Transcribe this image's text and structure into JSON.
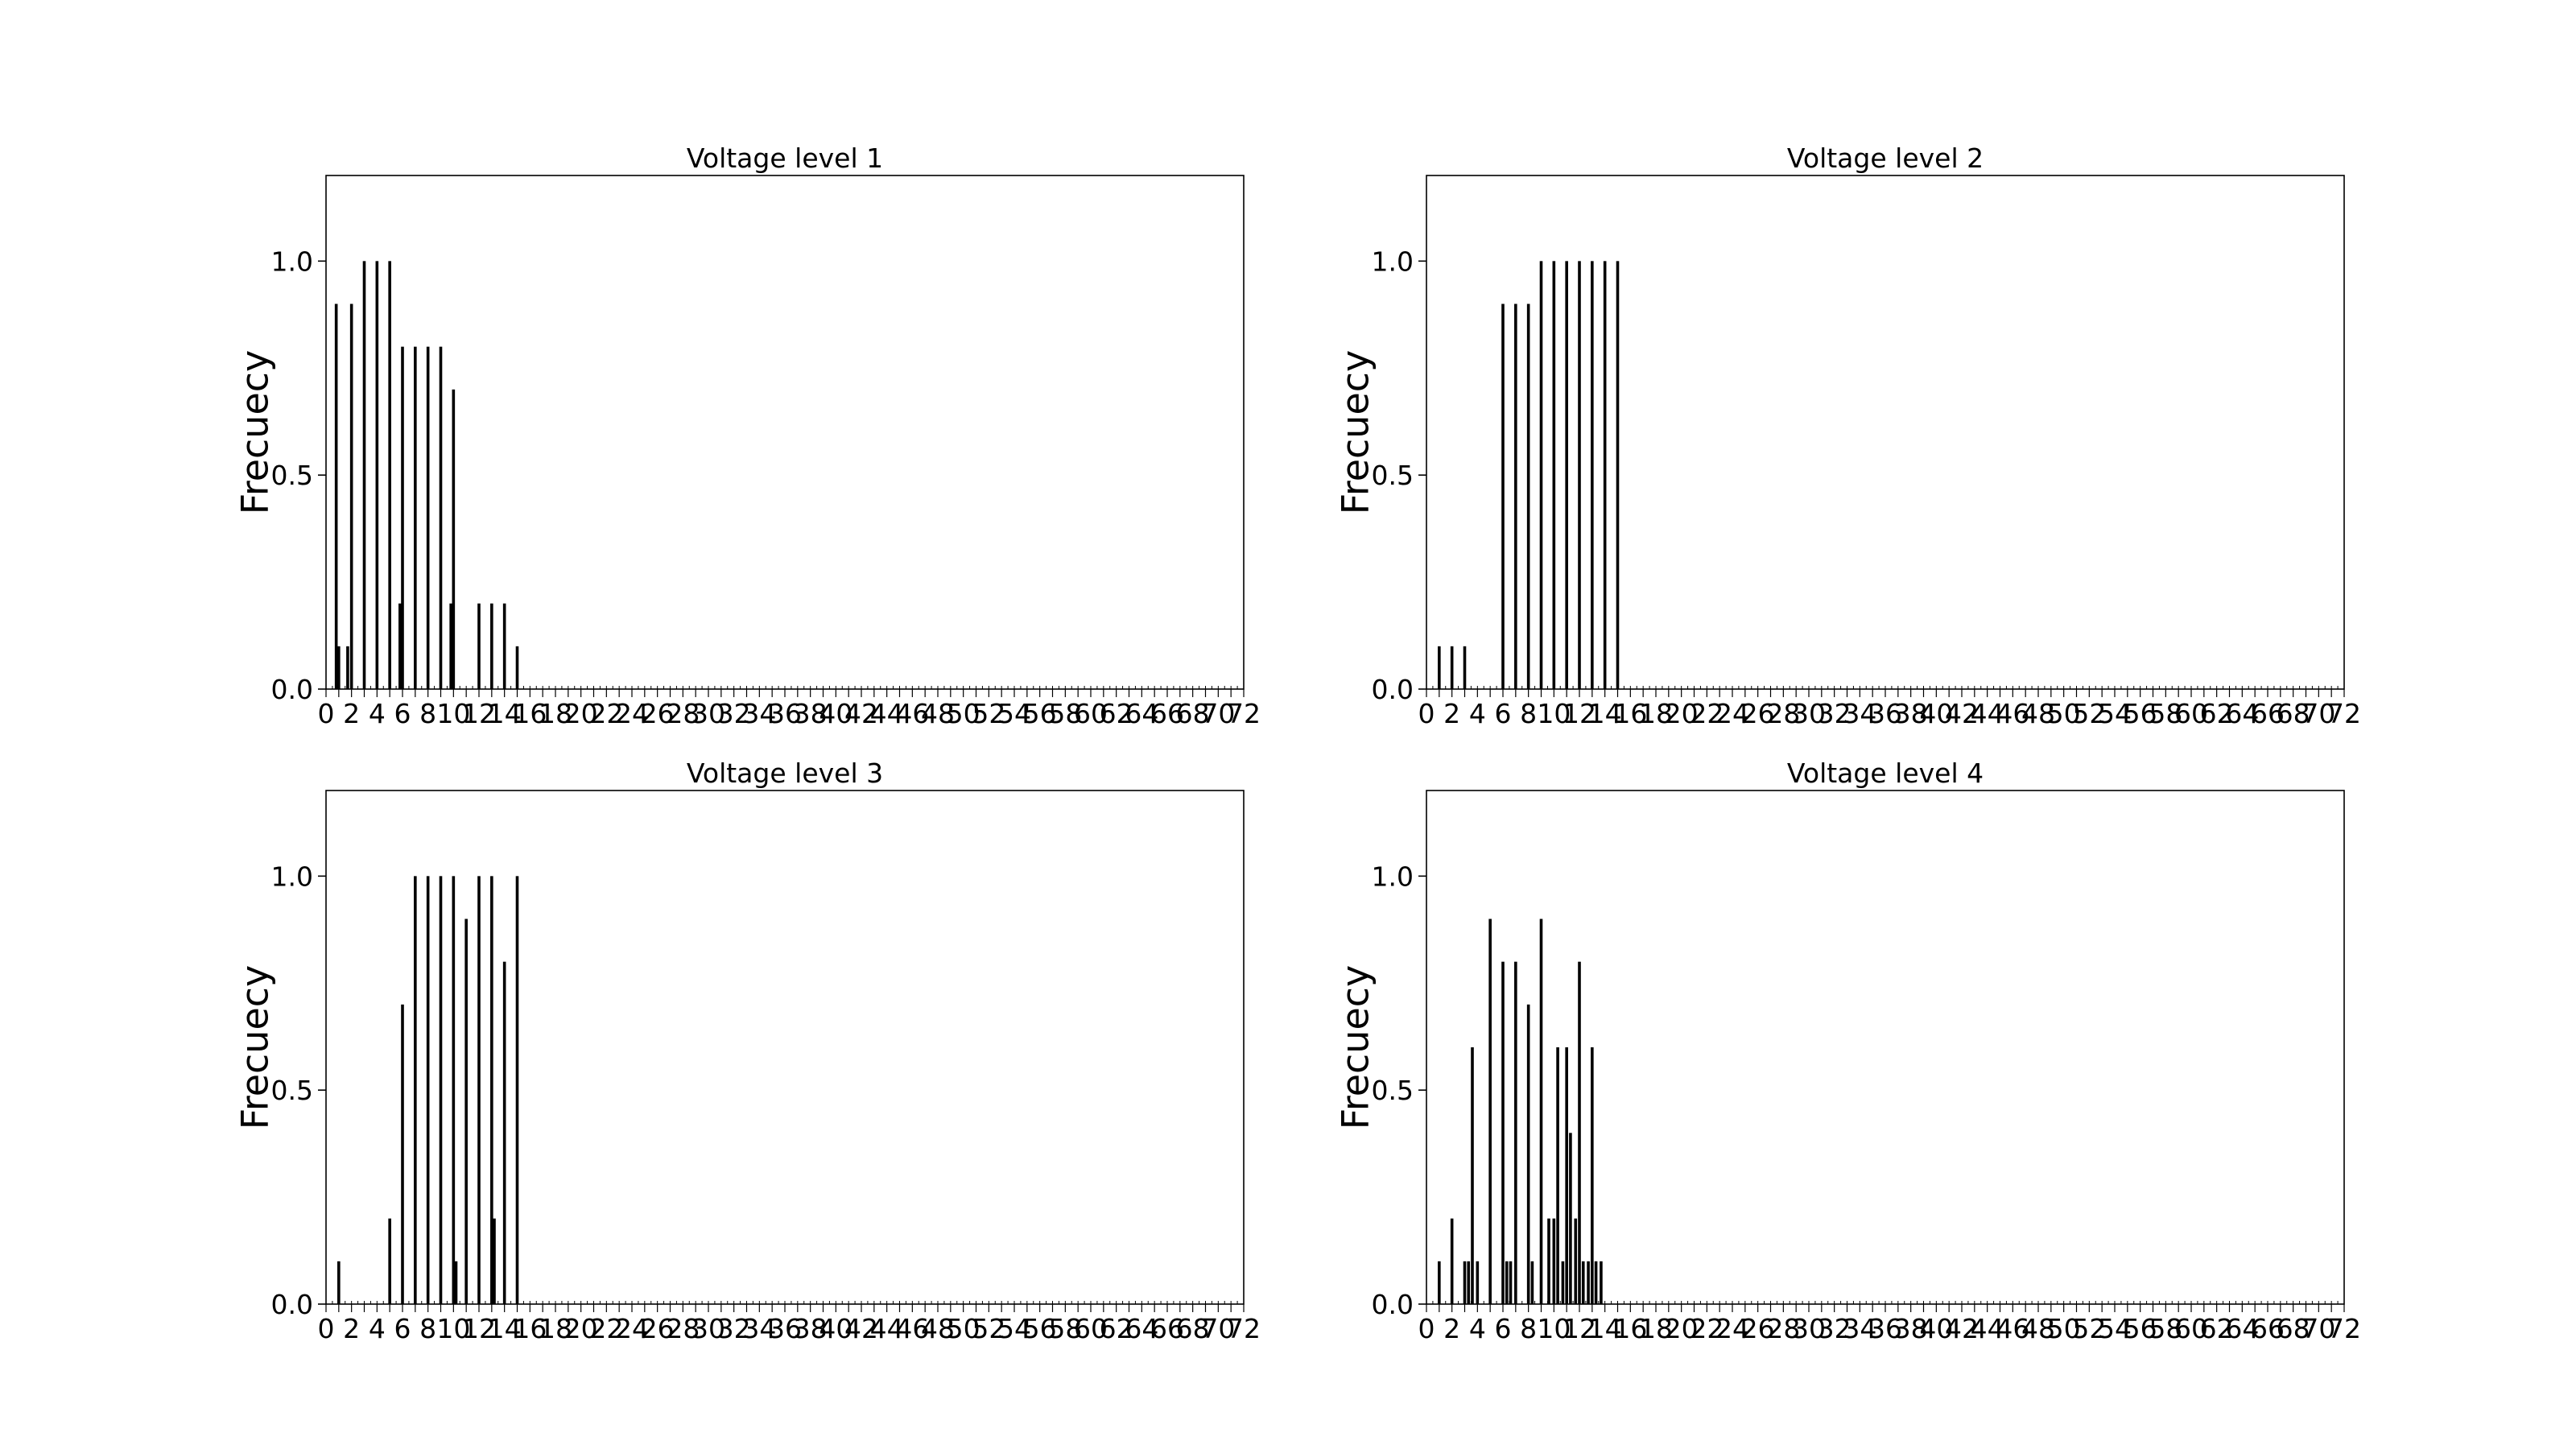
{
  "colors": {
    "background": "#ffffff",
    "axes": "#000000",
    "bars": "#000000"
  },
  "chart_data": [
    {
      "type": "bar",
      "title": "Voltage level 1",
      "xlabel": "",
      "ylabel": "Frecuecy",
      "xlim": [
        0,
        72
      ],
      "ylim": [
        0,
        1.2
      ],
      "yticks": [
        0.0,
        0.5,
        1.0
      ],
      "grid": false,
      "x": [
        0.8,
        1,
        1.7,
        2,
        3,
        4,
        5,
        5.8,
        6,
        7,
        8,
        9,
        9.8,
        10,
        12,
        13,
        14,
        15
      ],
      "values": [
        0.9,
        0.1,
        0.1,
        0.9,
        1.0,
        1.0,
        1.0,
        0.2,
        0.8,
        0.8,
        0.8,
        0.8,
        0.2,
        0.7,
        0.2,
        0.2,
        0.2,
        0.1
      ]
    },
    {
      "type": "bar",
      "title": "Voltage level 2",
      "xlabel": "",
      "ylabel": "Frecuecy",
      "xlim": [
        0,
        72
      ],
      "ylim": [
        0,
        1.2
      ],
      "yticks": [
        0.0,
        0.5,
        1.0
      ],
      "grid": false,
      "x": [
        1,
        2,
        3,
        6,
        7,
        8,
        9,
        10,
        11,
        12,
        13,
        14,
        15
      ],
      "values": [
        0.1,
        0.1,
        0.1,
        0.9,
        0.9,
        0.9,
        1.0,
        1.0,
        1.0,
        1.0,
        1.0,
        1.0,
        1.0
      ]
    },
    {
      "type": "bar",
      "title": "Voltage level 3",
      "xlabel": "",
      "ylabel": "Frecuecy",
      "xlim": [
        0,
        72
      ],
      "ylim": [
        0,
        1.2
      ],
      "yticks": [
        0.0,
        0.5,
        1.0
      ],
      "grid": false,
      "x": [
        1,
        5,
        6,
        7,
        8,
        9,
        10,
        10.2,
        11,
        12,
        13,
        13.2,
        14,
        15
      ],
      "values": [
        0.1,
        0.2,
        0.7,
        1.0,
        1.0,
        1.0,
        1.0,
        0.1,
        0.9,
        1.0,
        1.0,
        0.2,
        0.8,
        1.0
      ]
    },
    {
      "type": "bar",
      "title": "Voltage level 4",
      "xlabel": "",
      "ylabel": "Frecuecy",
      "xlim": [
        0,
        72
      ],
      "ylim": [
        0,
        1.2
      ],
      "yticks": [
        0.0,
        0.5,
        1.0
      ],
      "grid": false,
      "x": [
        1,
        2,
        3,
        3.3,
        3.6,
        4,
        5,
        6,
        6.3,
        6.6,
        7,
        8,
        8.3,
        9,
        9.6,
        10,
        10.3,
        10.7,
        11,
        11.3,
        11.7,
        12,
        12.3,
        12.7,
        13,
        13.3,
        13.7
      ],
      "values": [
        0.1,
        0.2,
        0.1,
        0.1,
        0.6,
        0.1,
        0.9,
        0.8,
        0.1,
        0.1,
        0.8,
        0.7,
        0.1,
        0.9,
        0.2,
        0.2,
        0.6,
        0.1,
        0.6,
        0.4,
        0.2,
        0.8,
        0.1,
        0.1,
        0.6,
        0.1,
        0.1
      ]
    }
  ]
}
